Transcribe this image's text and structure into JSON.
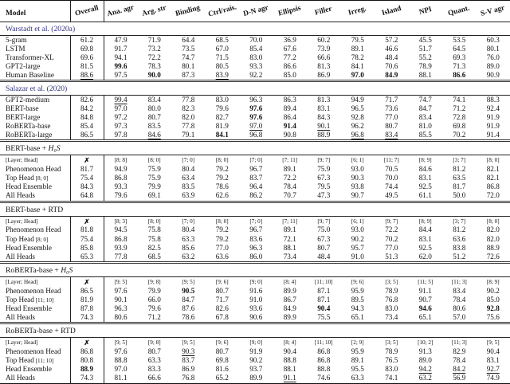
{
  "colors": {
    "link": "#32327d",
    "rule": "#222222",
    "text": "#131313"
  },
  "icons": {
    "cross": "✗"
  },
  "table": {
    "columns": [
      "Model",
      "Overall",
      "Ana. agr",
      "Arg. str",
      "Binding",
      "Ctrl/rais.",
      "D-N agr",
      "Ellipsis",
      "Filler",
      "Irreg.",
      "Island",
      "NPI",
      "Quant.",
      "S-V agr"
    ],
    "cell_format_legend": "b: = bold, u: = underlined",
    "sections": [
      {
        "title": "Warstadt et al. (2020a)",
        "link": true,
        "rows": [
          {
            "label": "5-gram",
            "cells": [
              "61.2",
              "47.9",
              "71.9",
              "64.4",
              "68.5",
              "70.0",
              "36.9",
              "60.2",
              "79.5",
              "57.2",
              "45.5",
              "53.5",
              "60.3"
            ]
          },
          {
            "label": "LSTM",
            "cells": [
              "69.8",
              "91.7",
              "73.2",
              "73.5",
              "67.0",
              "85.4",
              "67.6",
              "73.9",
              "89.1",
              "46.6",
              "51.7",
              "64.5",
              "80.1"
            ]
          },
          {
            "label": "Transformer-XL",
            "cells": [
              "69.6",
              "94.1",
              "72.2",
              "74.7",
              "71.5",
              "83.0",
              "77.2",
              "66.6",
              "78.2",
              "48.4",
              "55.2",
              "69.3",
              "76.0"
            ]
          },
          {
            "label": "GPT2-large",
            "cells": [
              "81.5",
              "b:99.6",
              "78.3",
              "80.1",
              "80.5",
              "93.3",
              "86.6",
              "81.3",
              "84.1",
              "70.6",
              "78.9",
              "71.3",
              "89.0"
            ]
          },
          {
            "label": "Human Baseline",
            "cells": [
              "u:88.6",
              "97.5",
              "b:90.0",
              "87.3",
              "u:83.9",
              "92.2",
              "85.0",
              "86.9",
              "b:97.0",
              "b:84.9",
              "88.1",
              "b:86.6",
              "90.9"
            ]
          }
        ]
      },
      {
        "title": "Salazar et al. (2020)",
        "link": true,
        "rows": [
          {
            "label": "GPT2-medium",
            "cells": [
              "82.6",
              "u:99.4",
              "83.4",
              "77.8",
              "83.0",
              "96.3",
              "86.3",
              "81.3",
              "94.9",
              "71.7",
              "74.7",
              "74.1",
              "88.3"
            ]
          },
          {
            "label": "BERT-base",
            "cells": [
              "84.2",
              "97.0",
              "80.0",
              "82.3",
              "79.6",
              "b:97.6",
              "89.4",
              "83.1",
              "96.5",
              "73.6",
              "84.7",
              "71.2",
              "92.4"
            ]
          },
          {
            "label": "BERT-large",
            "cells": [
              "84.8",
              "97.2",
              "80.7",
              "82.0",
              "82.7",
              "b:97.6",
              "86.4",
              "84.3",
              "92.8",
              "77.0",
              "83.4",
              "72.8",
              "91.9"
            ]
          },
          {
            "label": "RoBERTa-base",
            "cells": [
              "85.4",
              "97.3",
              "83.5",
              "77.8",
              "81.9",
              "u:97.0",
              "b:91.4",
              "u:90.1",
              "96.2",
              "80.7",
              "81.0",
              "69.8",
              "91.9"
            ]
          },
          {
            "label": "RoBERTa-large",
            "cells": [
              "86.5",
              "97.8",
              "u:84.6",
              "79.1",
              "b:84.1",
              "96.8",
              "90.8",
              "88.9",
              "u:96.8",
              "u:83.4",
              "85.5",
              "70.2",
              "91.4"
            ]
          }
        ]
      },
      {
        "title": "BERT-base + ",
        "math": "H₀S",
        "rows": [
          {
            "label": "[Layer; Head]",
            "lh": true,
            "cells": [
              "✗",
              "[8; 8]",
              "[8; 0]",
              "[7; 0]",
              "[8; 0]",
              "[7; 0]",
              "[7; 11]",
              "[9; 7]",
              "[6; 1]",
              "[11; 7]",
              "[8; 9]",
              "[3; 7]",
              "[8; 0]"
            ]
          },
          {
            "label": "Phenomenon Head",
            "cells": [
              "81.7",
              "94.9",
              "75.9",
              "80.4",
              "79.2",
              "96.7",
              "89.1",
              "75.9",
              "93.0",
              "70.5",
              "84.6",
              "81.2",
              "82.1"
            ]
          },
          {
            "label": "Top Head",
            "small": "[8; 0]",
            "cells": [
              "75.4",
              "86.8",
              "75.9",
              "63.4",
              "79.2",
              "83.7",
              "72.2",
              "67.3",
              "90.3",
              "70.0",
              "83.1",
              "63.5",
              "82.1"
            ]
          },
          {
            "label": "Head Ensemble",
            "cells": [
              "84.3",
              "93.3",
              "79.9",
              "83.5",
              "78.6",
              "96.4",
              "78.4",
              "79.5",
              "93.8",
              "74.4",
              "92.5",
              "81.7",
              "86.8"
            ]
          },
          {
            "label": "All Heads",
            "cells": [
              "64.8",
              "79.6",
              "69.1",
              "63.9",
              "62.6",
              "86.2",
              "70.7",
              "47.3",
              "90.7",
              "49.5",
              "61.1",
              "50.0",
              "72.0"
            ]
          }
        ]
      },
      {
        "title": "BERT-base + RTD",
        "rows": [
          {
            "label": "[Layer; Head]",
            "lh": true,
            "cells": [
              "✗",
              "[8; 3]",
              "[8; 0]",
              "[7; 0]",
              "[8; 0]",
              "[7; 0]",
              "[7; 11]",
              "[9; 7]",
              "[6; 1]",
              "[9; 7]",
              "[8; 9]",
              "[3; 7]",
              "[8; 0]"
            ]
          },
          {
            "label": "Phenomenon Head",
            "cells": [
              "81.8",
              "94.5",
              "75.8",
              "80.4",
              "79.2",
              "96.7",
              "89.1",
              "75.0",
              "93.0",
              "72.2",
              "84.4",
              "81.2",
              "82.0"
            ]
          },
          {
            "label": "Top Head",
            "small": "[8; 0]",
            "cells": [
              "75.4",
              "86.8",
              "75.8",
              "63.3",
              "79.2",
              "83.6",
              "72.1",
              "67.3",
              "90.2",
              "70.2",
              "83.1",
              "63.6",
              "82.0"
            ]
          },
          {
            "label": "Head Ensemble",
            "cells": [
              "85.8",
              "93.9",
              "82.5",
              "85.6",
              "77.0",
              "96.3",
              "88.1",
              "80.7",
              "95.7",
              "77.0",
              "92.5",
              "83.8",
              "88.9"
            ]
          },
          {
            "label": "All Heads",
            "cells": [
              "65.3",
              "77.8",
              "68.5",
              "63.2",
              "63.6",
              "86.0",
              "73.4",
              "48.4",
              "91.0",
              "51.3",
              "62.0",
              "51.2",
              "72.6"
            ]
          }
        ]
      },
      {
        "title": "RoBERTa-base + ",
        "math": "H₀S",
        "rows": [
          {
            "label": "[Layer; Head]",
            "lh": true,
            "cells": [
              "✗",
              "[9; 5]",
              "[9; 8]",
              "[9; 5]",
              "[9; 6]",
              "[9; 0]",
              "[8; 4]",
              "[11; 10]",
              "[9; 6]",
              "[3; 5]",
              "[11; 5]",
              "[11; 3]",
              "[8; 9]"
            ]
          },
          {
            "label": "Phenomenon Head",
            "cells": [
              "86.5",
              "97.6",
              "79.9",
              "b:90.5",
              "80.7",
              "91.6",
              "89.9",
              "87.1",
              "95.9",
              "78.9",
              "91.1",
              "83.4",
              "90.2"
            ]
          },
          {
            "label": "Top Head",
            "small": "[11; 10]",
            "cells": [
              "81.9",
              "90.1",
              "66.0",
              "84.7",
              "71.7",
              "91.0",
              "86.7",
              "87.1",
              "89.5",
              "76.8",
              "90.7",
              "78.4",
              "85.0"
            ]
          },
          {
            "label": "Head Ensemble",
            "cells": [
              "87.8",
              "96.3",
              "79.6",
              "87.6",
              "82.6",
              "93.6",
              "84.9",
              "b:90.4",
              "94.3",
              "83.0",
              "b:94.6",
              "80.6",
              "b:92.8"
            ]
          },
          {
            "label": "All Heads",
            "cells": [
              "74.3",
              "80.6",
              "71.2",
              "78.6",
              "67.8",
              "90.6",
              "89.9",
              "75.5",
              "65.1",
              "73.4",
              "65.1",
              "57.0",
              "75.6"
            ]
          }
        ]
      },
      {
        "title": "RoBERTa-base + RTD",
        "rows": [
          {
            "label": "[Layer; Head]",
            "lh": true,
            "cells": [
              "✗",
              "[9; 5]",
              "[9; 8]",
              "[9; 5]",
              "[9; 6]",
              "[9; 0]",
              "[8; 4]",
              "[11; 10]",
              "[2; 9]",
              "[3; 5]",
              "[10; 2]",
              "[11; 3]",
              "[9; 5]"
            ]
          },
          {
            "label": "Phenomenon Head",
            "cells": [
              "86.8",
              "97.6",
              "80.7",
              "u:90.3",
              "80.7",
              "91.9",
              "90.4",
              "86.8",
              "95.9",
              "78.9",
              "91.3",
              "82.9",
              "90.4"
            ]
          },
          {
            "label": "Top Head",
            "small": "[11; 10]",
            "cells": [
              "80.8",
              "88.8",
              "63.3",
              "83.7",
              "69.8",
              "90.2",
              "88.8",
              "86.8",
              "89.1",
              "76.5",
              "89.0",
              "78.4",
              "83.1"
            ]
          },
          {
            "label": "Head Ensemble",
            "cells": [
              "b:88.9",
              "97.0",
              "83.3",
              "86.9",
              "81.6",
              "93.7",
              "88.1",
              "88.8",
              "95.5",
              "83.0",
              "u:94.2",
              "u:84.2",
              "u:92.7"
            ]
          },
          {
            "label": "All Heads",
            "cells": [
              "74.3",
              "81.1",
              "66.6",
              "76.8",
              "65.2",
              "89.9",
              "u:91.1",
              "74.6",
              "63.3",
              "74.1",
              "63.2",
              "56.9",
              "74.9"
            ]
          }
        ]
      }
    ]
  }
}
